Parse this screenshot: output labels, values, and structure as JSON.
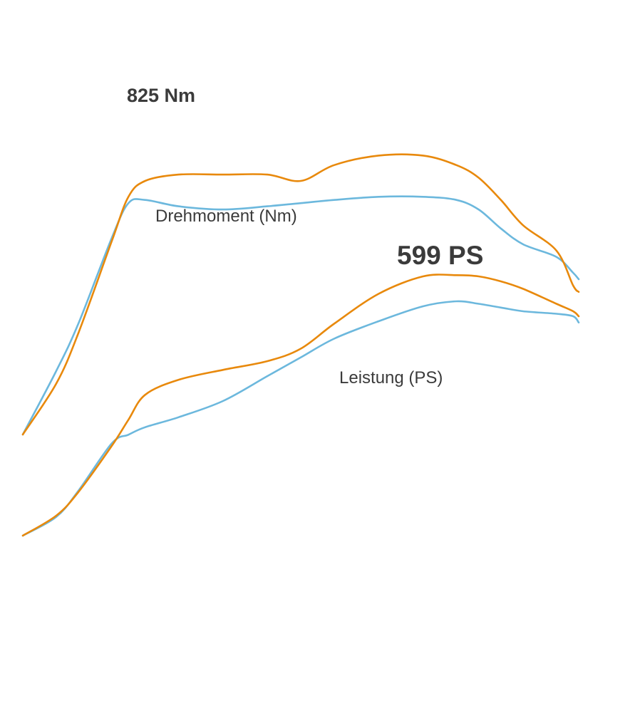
{
  "colors": {
    "tuned": "#e8890c",
    "stock": "#6cb8dd",
    "label": "#3b3b3b",
    "background": "#ffffff"
  },
  "chart_data": {
    "type": "line",
    "title": "",
    "xlabel": "",
    "ylabel": "",
    "grid": false,
    "legend": "none",
    "x": [
      0.0,
      0.06,
      0.1,
      0.16,
      0.19,
      0.22,
      0.28,
      0.36,
      0.44,
      0.5,
      0.56,
      0.64,
      0.72,
      0.78,
      0.82,
      0.86,
      0.9,
      0.96,
      0.99,
      1.0
    ],
    "groups": [
      {
        "name": "Drehmoment (Nm)",
        "peak_label": "825 Nm",
        "series": [
          {
            "role": "tuned",
            "values": [
              0.0,
              0.16,
              0.32,
              0.61,
              0.75,
              0.8,
              0.82,
              0.82,
              0.82,
              0.8,
              0.85,
              0.88,
              0.88,
              0.85,
              0.81,
              0.74,
              0.66,
              0.58,
              0.47,
              0.45
            ]
          },
          {
            "role": "stock",
            "values": [
              0.0,
              0.2,
              0.35,
              0.62,
              0.73,
              0.74,
              0.72,
              0.71,
              0.72,
              0.73,
              0.74,
              0.75,
              0.75,
              0.74,
              0.71,
              0.65,
              0.6,
              0.56,
              0.51,
              0.49
            ]
          }
        ]
      },
      {
        "name": "Leistung (PS)",
        "peak_label": "599 PS",
        "series": [
          {
            "role": "tuned",
            "values": [
              0.0,
              0.16,
              0.35,
              0.72,
              0.93,
              1.13,
              1.25,
              1.33,
              1.4,
              1.5,
              1.7,
              1.94,
              2.08,
              2.09,
              2.08,
              2.04,
              1.98,
              1.86,
              1.8,
              1.76
            ]
          },
          {
            "role": "stock",
            "values": [
              0.0,
              0.15,
              0.36,
              0.74,
              0.81,
              0.87,
              0.95,
              1.08,
              1.28,
              1.43,
              1.58,
              1.72,
              1.84,
              1.88,
              1.86,
              1.83,
              1.8,
              1.78,
              1.76,
              1.71
            ]
          }
        ]
      }
    ]
  }
}
